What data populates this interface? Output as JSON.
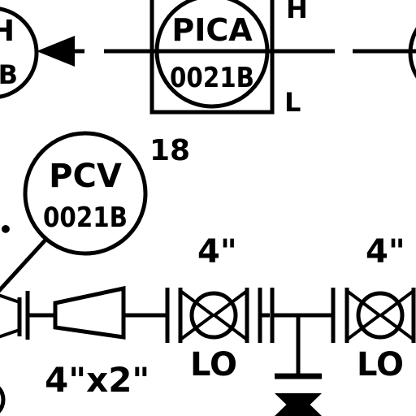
{
  "instruments": {
    "left_partial": {
      "line1": "H",
      "line2": "B"
    },
    "pica": {
      "line1": "PICA",
      "line2": "0021B",
      "high": "H",
      "low": "L",
      "ref": "18"
    },
    "pcv": {
      "line1": "PCV",
      "line2": "0021B"
    }
  },
  "piping": {
    "reducer_size": "4\"x2\"",
    "valve1": {
      "size": "4\"",
      "state": "LO"
    },
    "valve2": {
      "size": "4\"",
      "state": "LO"
    }
  }
}
